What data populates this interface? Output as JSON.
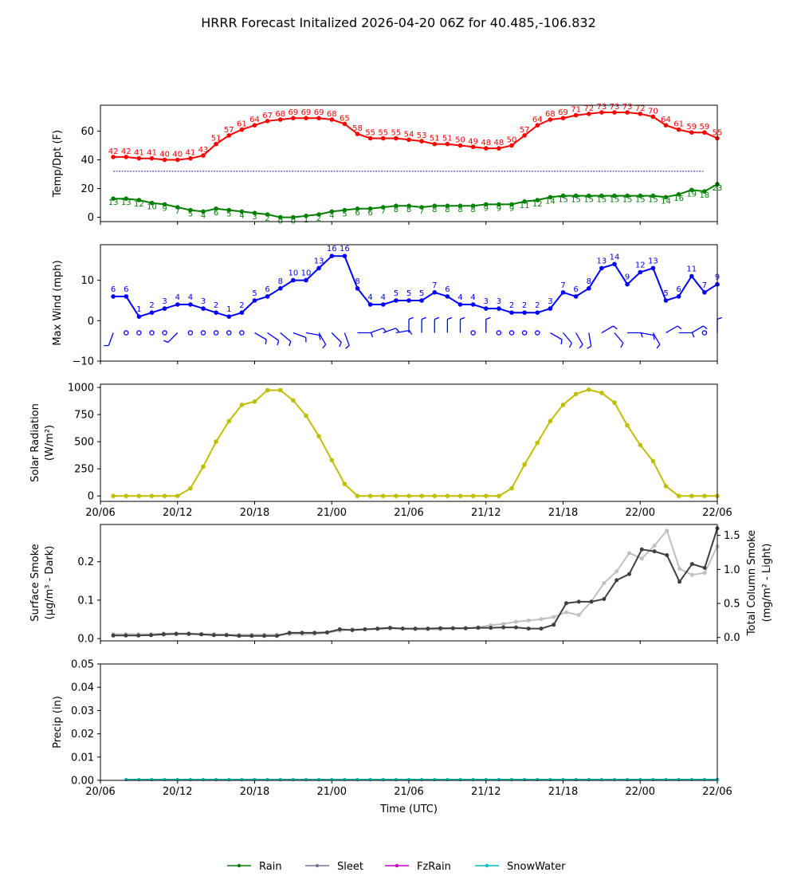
{
  "title": "HRRR Forecast Initalized 2026-04-20 06Z for 40.485,-106.832",
  "colors": {
    "temp": "#ff0000",
    "dewpoint": "#008000",
    "freezing": "#00008b",
    "wind": "#0000ff",
    "solar": "#bfbf00",
    "smoke_dark": "#404040",
    "smoke_light": "#c0c0c0",
    "rain": "#008000",
    "sleet": "#8070a0",
    "fzrain": "#c000c0",
    "snowwater": "#00bfbf"
  },
  "chart_data": [
    {
      "type": "line",
      "id": "temp",
      "ylabel": "Temp/Dpt (F)",
      "ylim": [
        -3,
        78
      ],
      "yticks": [
        0,
        20,
        40,
        60
      ],
      "freezing_line": 32,
      "series": [
        {
          "name": "Temperature",
          "values": [
            42,
            42,
            41,
            41,
            40,
            40,
            41,
            43,
            51,
            57,
            61,
            64,
            67,
            68,
            69,
            69,
            69,
            68,
            65,
            58,
            55,
            55,
            55,
            54,
            53,
            51,
            51,
            50,
            49,
            48,
            48,
            50,
            57,
            64,
            68,
            69,
            71,
            72,
            73,
            73,
            73,
            72,
            70,
            64,
            61,
            59,
            59,
            55
          ]
        },
        {
          "name": "Dewpoint",
          "values": [
            13,
            13,
            12,
            10,
            9,
            7,
            5,
            4,
            6,
            5,
            4,
            3,
            2,
            0,
            0,
            1,
            2,
            4,
            5,
            6,
            6,
            7,
            8,
            8,
            7,
            8,
            8,
            8,
            8,
            9,
            9,
            9,
            11,
            12,
            14,
            15,
            15,
            15,
            15,
            15,
            15,
            15,
            15,
            14,
            16,
            19,
            18,
            23
          ]
        }
      ]
    },
    {
      "type": "line",
      "id": "wind",
      "ylabel": "Max Wind (mph)",
      "ylim": [
        -10,
        18.8
      ],
      "yticks": [
        -10,
        0,
        10
      ],
      "series": [
        {
          "name": "Max Wind",
          "values": [
            6,
            6,
            1,
            2,
            3,
            4,
            4,
            3,
            2,
            1,
            2,
            5,
            6,
            8,
            10,
            10,
            13,
            16,
            16,
            8,
            4,
            4,
            5,
            5,
            5,
            7,
            6,
            4,
            4,
            3,
            3,
            2,
            2,
            2,
            3,
            7,
            6,
            8,
            13,
            14,
            9,
            12,
            13,
            5,
            6,
            11,
            7,
            9
          ]
        }
      ],
      "barb_angles": [
        200,
        null,
        null,
        null,
        null,
        225,
        null,
        null,
        null,
        null,
        null,
        120,
        125,
        130,
        110,
        100,
        150,
        135,
        160,
        90,
        70,
        70,
        80,
        0,
        0,
        0,
        0,
        0,
        null,
        0,
        null,
        null,
        null,
        null,
        120,
        140,
        150,
        170,
        60,
        140,
        90,
        100,
        150,
        60,
        90,
        60,
        null,
        0
      ]
    },
    {
      "type": "line",
      "id": "solar",
      "ylabel": "Solar Radiation",
      "ylabel2": "(W/m²)",
      "ylim": [
        -50,
        1030
      ],
      "yticks": [
        0,
        250,
        500,
        750,
        1000
      ],
      "series": [
        {
          "name": "Solar",
          "values": [
            0,
            0,
            0,
            0,
            0,
            0,
            70,
            270,
            500,
            690,
            840,
            870,
            975,
            975,
            880,
            740,
            550,
            330,
            110,
            0,
            0,
            0,
            0,
            0,
            0,
            0,
            0,
            0,
            0,
            0,
            0,
            70,
            290,
            490,
            690,
            840,
            940,
            980,
            950,
            860,
            650,
            470,
            320,
            90,
            0,
            0,
            0,
            0
          ]
        }
      ]
    },
    {
      "type": "line",
      "id": "smoke",
      "ylabel": "Surface Smoke",
      "ylabel2": "(μg/m³ - Dark)",
      "ylabel_right": "Total Column Smoke",
      "ylabel_right2": "(mg/m² - Light)",
      "ylim": [
        -0.006,
        0.297
      ],
      "ylim_right": [
        -0.05,
        1.66
      ],
      "yticks": [
        0.0,
        0.1,
        0.2
      ],
      "yticks_right": [
        0.0,
        0.5,
        1.0,
        1.5
      ],
      "series": [
        {
          "name": "Surface Smoke",
          "axis": "left",
          "values": [
            0.008,
            0.008,
            0.008,
            0.009,
            0.011,
            0.012,
            0.012,
            0.011,
            0.009,
            0.009,
            0.007,
            0.007,
            0.007,
            0.007,
            0.015,
            0.015,
            0.015,
            0.016,
            0.024,
            0.022,
            0.024,
            0.026,
            0.028,
            0.026,
            0.026,
            0.026,
            0.027,
            0.027,
            0.027,
            0.028,
            0.028,
            0.029,
            0.029,
            0.026,
            0.026,
            0.036,
            0.092,
            0.096,
            0.096,
            0.103,
            0.152,
            0.168,
            0.232,
            0.227,
            0.217,
            0.148,
            0.194,
            0.184,
            0.287
          ]
        },
        {
          "name": "Total Column Smoke",
          "axis": "right",
          "values": [
            0.05,
            0.05,
            0.05,
            0.05,
            0.06,
            0.06,
            0.06,
            0.05,
            0.05,
            0.04,
            0.04,
            0.04,
            0.04,
            0.04,
            0.05,
            0.05,
            0.05,
            0.07,
            0.1,
            0.12,
            0.12,
            0.12,
            0.13,
            0.13,
            0.12,
            0.12,
            0.12,
            0.13,
            0.13,
            0.15,
            0.18,
            0.2,
            0.23,
            0.25,
            0.27,
            0.3,
            0.37,
            0.33,
            0.53,
            0.8,
            0.97,
            1.24,
            1.16,
            1.35,
            1.57,
            1.01,
            0.92,
            0.95,
            1.34
          ]
        }
      ]
    },
    {
      "type": "line",
      "id": "precip",
      "ylabel": "Precip (in)",
      "xlabel": "Time (UTC)",
      "ylim": [
        0,
        0.05
      ],
      "yticks": [
        0.0,
        0.01,
        0.02,
        0.03,
        0.04,
        0.05
      ],
      "series": [
        {
          "name": "Rain",
          "values": [
            0,
            0,
            0,
            0,
            0,
            0,
            0,
            0,
            0,
            0,
            0,
            0,
            0,
            0,
            0,
            0,
            0,
            0,
            0,
            0,
            0,
            0,
            0,
            0,
            0,
            0,
            0,
            0,
            0,
            0,
            0,
            0,
            0,
            0,
            0,
            0,
            0,
            0,
            0,
            0,
            0,
            0,
            0,
            0,
            0,
            0,
            0
          ]
        },
        {
          "name": "SnowWater",
          "values": [
            0,
            0,
            0,
            0,
            0,
            0,
            0,
            0,
            0,
            0,
            0,
            0,
            0,
            0,
            0,
            0,
            0,
            0,
            0,
            0,
            0,
            0,
            0,
            0,
            0,
            0,
            0,
            0,
            0,
            0,
            0,
            0,
            0,
            0,
            0,
            0,
            0,
            0,
            0,
            0,
            0,
            0,
            0,
            0,
            0,
            0,
            0
          ]
        }
      ]
    }
  ],
  "xaxis": {
    "start_hour": 6,
    "end_hour": 54,
    "tick_hours": [
      6,
      12,
      18,
      24,
      30,
      36,
      42,
      48,
      54
    ],
    "tick_labels": [
      "20/06",
      "20/12",
      "20/18",
      "21/00",
      "21/06",
      "21/12",
      "21/18",
      "22/00",
      "22/06"
    ]
  },
  "legend": {
    "items": [
      {
        "label": "Rain",
        "color": "#008000"
      },
      {
        "label": "Sleet",
        "color": "#8070a0"
      },
      {
        "label": "FzRain",
        "color": "#c000c0"
      },
      {
        "label": "SnowWater",
        "color": "#00bfbf"
      }
    ]
  }
}
